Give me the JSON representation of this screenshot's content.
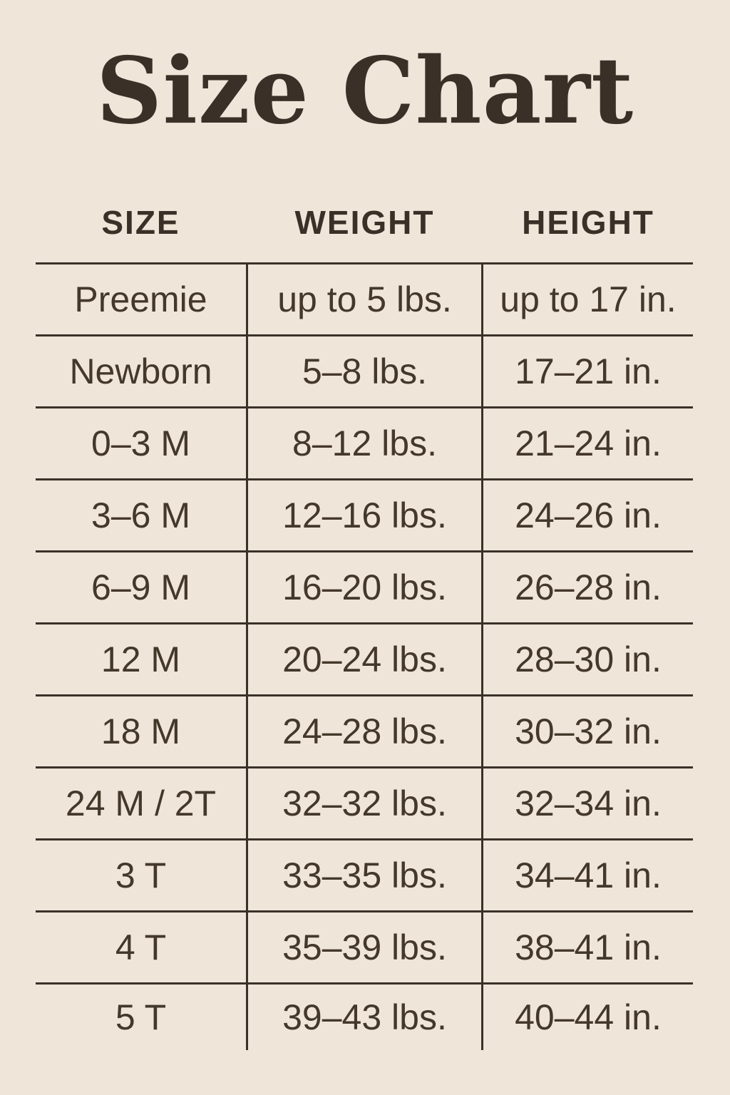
{
  "title": "Size Chart",
  "colors": {
    "background": "#efe6d9",
    "text": "#44382a",
    "line": "#3a3128",
    "title": "#3a3027"
  },
  "table": {
    "headers": [
      "SIZE",
      "WEIGHT",
      "HEIGHT"
    ],
    "rows": [
      {
        "size": "Preemie",
        "weight": "up to 5 lbs.",
        "height": "up to 17 in."
      },
      {
        "size": "Newborn",
        "weight": "5–8 lbs.",
        "height": "17–21 in."
      },
      {
        "size": "0–3 M",
        "weight": "8–12 lbs.",
        "height": "21–24 in."
      },
      {
        "size": "3–6 M",
        "weight": "12–16 lbs.",
        "height": "24–26 in."
      },
      {
        "size": "6–9 M",
        "weight": "16–20 lbs.",
        "height": "26–28 in."
      },
      {
        "size": "12 M",
        "weight": "20–24 lbs.",
        "height": "28–30 in."
      },
      {
        "size": "18 M",
        "weight": "24–28 lbs.",
        "height": "30–32 in."
      },
      {
        "size": "24 M / 2T",
        "weight": "32–32 lbs.",
        "height": "32–34 in."
      },
      {
        "size": "3 T",
        "weight": "33–35 lbs.",
        "height": "34–41 in."
      },
      {
        "size": "4 T",
        "weight": "35–39 lbs.",
        "height": "38–41 in."
      },
      {
        "size": "5 T",
        "weight": "39–43 lbs.",
        "height": "40–44 in."
      }
    ]
  },
  "chart_data": {
    "type": "table",
    "title": "Size Chart",
    "columns": [
      "SIZE",
      "WEIGHT",
      "HEIGHT"
    ],
    "rows": [
      [
        "Preemie",
        "up to 5 lbs.",
        "up to 17 in."
      ],
      [
        "Newborn",
        "5–8 lbs.",
        "17–21 in."
      ],
      [
        "0–3 M",
        "8–12 lbs.",
        "21–24 in."
      ],
      [
        "3–6 M",
        "12–16 lbs.",
        "24–26 in."
      ],
      [
        "6–9 M",
        "16–20 lbs.",
        "26–28 in."
      ],
      [
        "12 M",
        "20–24 lbs.",
        "28–30 in."
      ],
      [
        "18 M",
        "24–28 lbs.",
        "30–32 in."
      ],
      [
        "24 M / 2T",
        "32–32 lbs.",
        "32–34 in."
      ],
      [
        "3 T",
        "33–35 lbs.",
        "34–41 in."
      ],
      [
        "4 T",
        "35–39 lbs.",
        "38–41 in."
      ],
      [
        "5 T",
        "39–43 lbs.",
        "40–44 in."
      ]
    ],
    "layout": {
      "grid": "horizontal rules between rows, vertical rules between columns only (no outer border, no rule under last row)",
      "header_style": "bold uppercase, no rules above or beside"
    }
  }
}
